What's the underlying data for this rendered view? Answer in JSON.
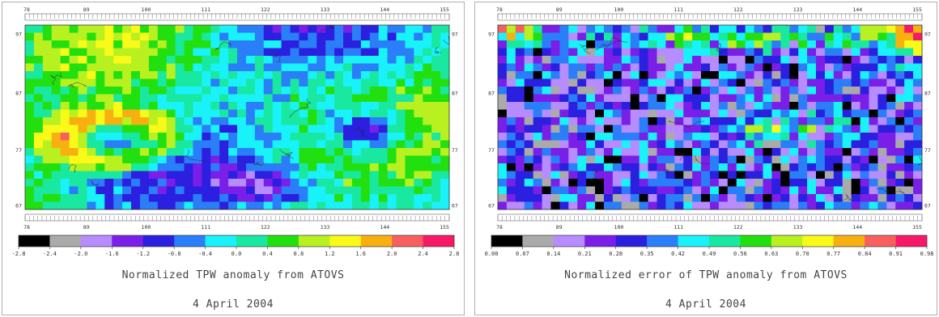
{
  "chart_data": [
    {
      "type": "heatmap",
      "title": "Normalized TPW anomaly   from ATOVS",
      "subtitle": "4 April 2004",
      "x_ticks": [
        "78",
        "89",
        "100",
        "111",
        "122",
        "133",
        "144",
        "155"
      ],
      "y_ticks": [
        "97",
        "87",
        "77",
        "67"
      ],
      "colorbar": {
        "labels": [
          "-2.8",
          "-2.4",
          "-2.0",
          "-1.6",
          "-1.2",
          "-0.8",
          "-0.4",
          "0.0",
          "0.4",
          "0.8",
          "1.2",
          "1.6",
          "2.0",
          "2.4",
          "2.8"
        ],
        "colors": [
          "#000000",
          "#aaaaaa",
          "#b78cff",
          "#7a1fe8",
          "#2b1fe0",
          "#2a7ef8",
          "#19f2f8",
          "#19e8a0",
          "#22e010",
          "#b8f020",
          "#fafa18",
          "#f8b010",
          "#f86060",
          "#f81868"
        ]
      }
    },
    {
      "type": "heatmap",
      "title": "Normalized error of TPW anomaly   from ATOVS",
      "subtitle": "4 April 2004",
      "x_ticks": [
        "78",
        "89",
        "100",
        "111",
        "122",
        "133",
        "144",
        "155"
      ],
      "y_ticks": [
        "97",
        "87",
        "77",
        "67"
      ],
      "colorbar": {
        "labels": [
          "0.00",
          "0.07",
          "0.14",
          "0.21",
          "0.28",
          "0.35",
          "0.42",
          "0.49",
          "0.56",
          "0.63",
          "0.70",
          "0.77",
          "0.84",
          "0.91",
          "0.98"
        ],
        "colors": [
          "#000000",
          "#aaaaaa",
          "#b78cff",
          "#7a1fe8",
          "#2b1fe0",
          "#2a7ef8",
          "#19f2f8",
          "#19e8a0",
          "#22e010",
          "#b8f020",
          "#fafa18",
          "#f8b010",
          "#f86060",
          "#f81868"
        ]
      }
    }
  ]
}
